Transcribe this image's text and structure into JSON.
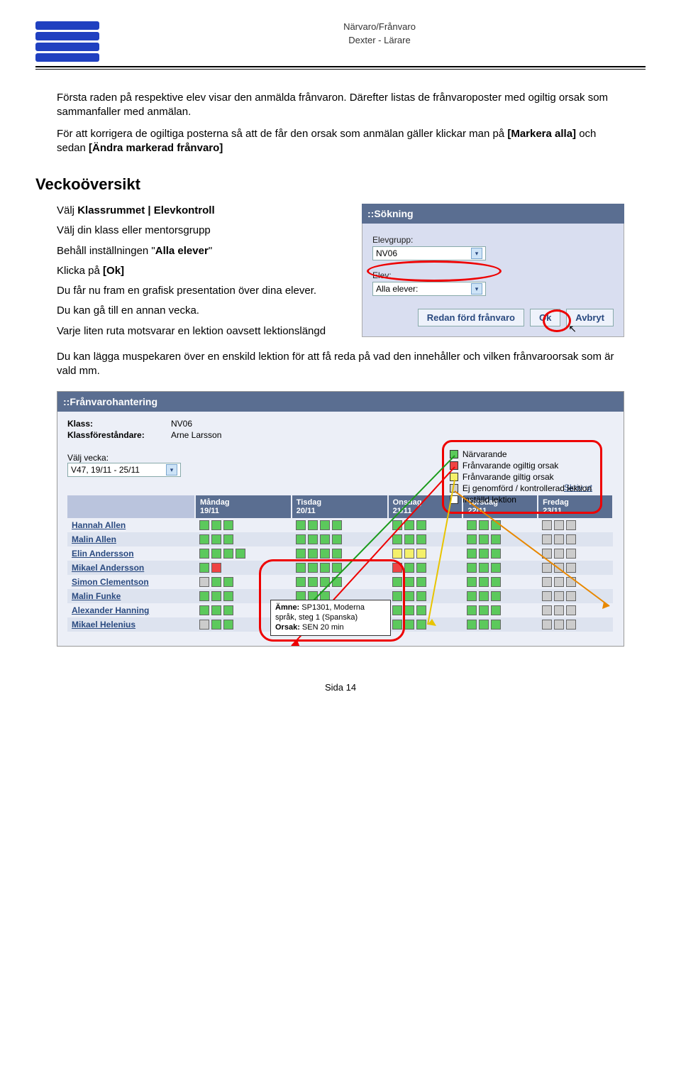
{
  "header": {
    "title": "Närvaro/Frånvaro",
    "subtitle": "Dexter - Lärare"
  },
  "para1": "Första raden på respektive elev visar den anmälda frånvaron. Därefter listas de frånvaroposter med ogiltig orsak som sammanfaller med anmälan.",
  "para2a": "För att korrigera de ogiltiga posterna så att de får den orsak som anmälan gäller klickar man på ",
  "para2b": "[Markera alla]",
  "para2c": " och sedan ",
  "para2d": "[Ändra markerad frånvaro]",
  "heading": "Veckoöversikt",
  "left": {
    "l1a": "Välj ",
    "l1b": "Klassrummet | Elevkontroll",
    "l2": "Välj din klass eller mentorsgrupp",
    "l3a": "Behåll inställningen \"",
    "l3b": "Alla elever",
    "l3c": "\"",
    "l4a": "Klicka på ",
    "l4b": "[Ok]",
    "l5": "Du får nu fram en grafisk presentation över dina elever.",
    "l6": "Du kan gå till en annan vecka.",
    "l7": "Varje liten ruta motsvarar en lektion oavsett lektionslängd"
  },
  "after": "Du kan lägga muspekaren över en enskild lektion för att få reda på vad den innehåller och vilken frånvaroorsak som är vald mm.",
  "sokning": {
    "title": "::Sökning",
    "lbl_group": "Elevgrupp:",
    "val_group": "NV06",
    "lbl_elev": "Elev:",
    "val_elev": "Alla elever:",
    "btn_redan": "Redan förd frånvaro",
    "btn_ok": "Ok",
    "btn_avbryt": "Avbryt"
  },
  "franv": {
    "title": "::Frånvarohantering",
    "k_klass": "Klass:",
    "v_klass": "NV06",
    "k_for": "Klassföreståndare:",
    "v_for": "Arne Larsson",
    "lbl_week": "Välj vecka:",
    "val_week": "V47, 19/11 - 25/11",
    "legend": {
      "g": "Närvarande",
      "r": "Frånvarande ogiltig orsak",
      "y": "Frånvarande giltig orsak",
      "x": "Ej genomförd / kontrollerad lektion",
      "w": "Inställd lektion"
    },
    "print": "Skriv ut",
    "days": {
      "mon": "Måndag",
      "mon_d": "19/11",
      "tue": "Tisdag",
      "tue_d": "20/11",
      "wed": "Onsdag",
      "wed_d": "21/11",
      "thu": "Torsdag",
      "thu_d": "22/11",
      "fri": "Fredag",
      "fri_d": "23/11"
    },
    "students": [
      "Hannah Allen",
      "Malin Allen",
      "Elin Andersson",
      "Mikael Andersson",
      "Simon Clementson",
      "Malin Funke",
      "Alexander Hanning",
      "Mikael Helenius"
    ],
    "rows": [
      {
        "mon": [
          "g",
          "g",
          "g"
        ],
        "tue": [
          "g",
          "g",
          "g",
          "g"
        ],
        "wed": [
          "g",
          "g",
          "g"
        ],
        "thu": [
          "g",
          "g",
          "g"
        ],
        "fri": [
          "x",
          "x",
          "x"
        ]
      },
      {
        "mon": [
          "g",
          "g",
          "g"
        ],
        "tue": [
          "g",
          "g",
          "g",
          "g"
        ],
        "wed": [
          "g",
          "g",
          "g"
        ],
        "thu": [
          "g",
          "g",
          "g"
        ],
        "fri": [
          "x",
          "x",
          "x"
        ]
      },
      {
        "mon": [
          "g",
          "g",
          "g",
          "g"
        ],
        "tue": [
          "g",
          "g",
          "g",
          "g"
        ],
        "wed": [
          "y",
          "y",
          "y"
        ],
        "thu": [
          "g",
          "g",
          "g"
        ],
        "fri": [
          "x",
          "x",
          "x"
        ]
      },
      {
        "mon": [
          "g",
          "r"
        ],
        "tue": [
          "g",
          "g",
          "g",
          "g"
        ],
        "wed": [
          "r",
          "g",
          "g"
        ],
        "thu": [
          "g",
          "g",
          "g"
        ],
        "fri": [
          "x",
          "x",
          "x"
        ]
      },
      {
        "mon": [
          "x",
          "g",
          "g"
        ],
        "tue": [
          "g",
          "g",
          "g",
          "g"
        ],
        "wed": [
          "g",
          "g",
          "g"
        ],
        "thu": [
          "g",
          "g",
          "g"
        ],
        "fri": [
          "x",
          "x",
          "x"
        ]
      },
      {
        "mon": [
          "g",
          "g",
          "g"
        ],
        "tue": [
          "g",
          "g",
          "g"
        ],
        "wed": [
          "g",
          "g",
          "g"
        ],
        "thu": [
          "g",
          "g",
          "g"
        ],
        "fri": [
          "x",
          "x",
          "x"
        ]
      },
      {
        "mon": [
          "g",
          "g",
          "g"
        ],
        "tue": [
          "g",
          "g",
          "g",
          "g"
        ],
        "wed": [
          "g",
          "g",
          "g"
        ],
        "thu": [
          "g",
          "g",
          "g"
        ],
        "fri": [
          "x",
          "x",
          "x"
        ]
      },
      {
        "mon": [
          "x",
          "g",
          "g"
        ],
        "tue": [
          "g",
          "g",
          "g",
          "g"
        ],
        "wed": [
          "g",
          "g",
          "g"
        ],
        "thu": [
          "g",
          "g",
          "g"
        ],
        "fri": [
          "x",
          "x",
          "x"
        ]
      }
    ],
    "tooltip": {
      "l1a": "Ämne:",
      "l1b": " SP1301, Moderna språk, steg 1 (Spanska)",
      "l2a": "Orsak:",
      "l2b": " SEN 20 min"
    }
  },
  "footer": "Sida 14",
  "colors": {
    "panel_hdr": "#5a6e91",
    "panel_body": "#d9def0",
    "link": "#2a4a80",
    "highlight": "#e00",
    "green": "#5cc95c",
    "red": "#e44",
    "yellow": "#f4f06a",
    "gray": "#ccc"
  }
}
